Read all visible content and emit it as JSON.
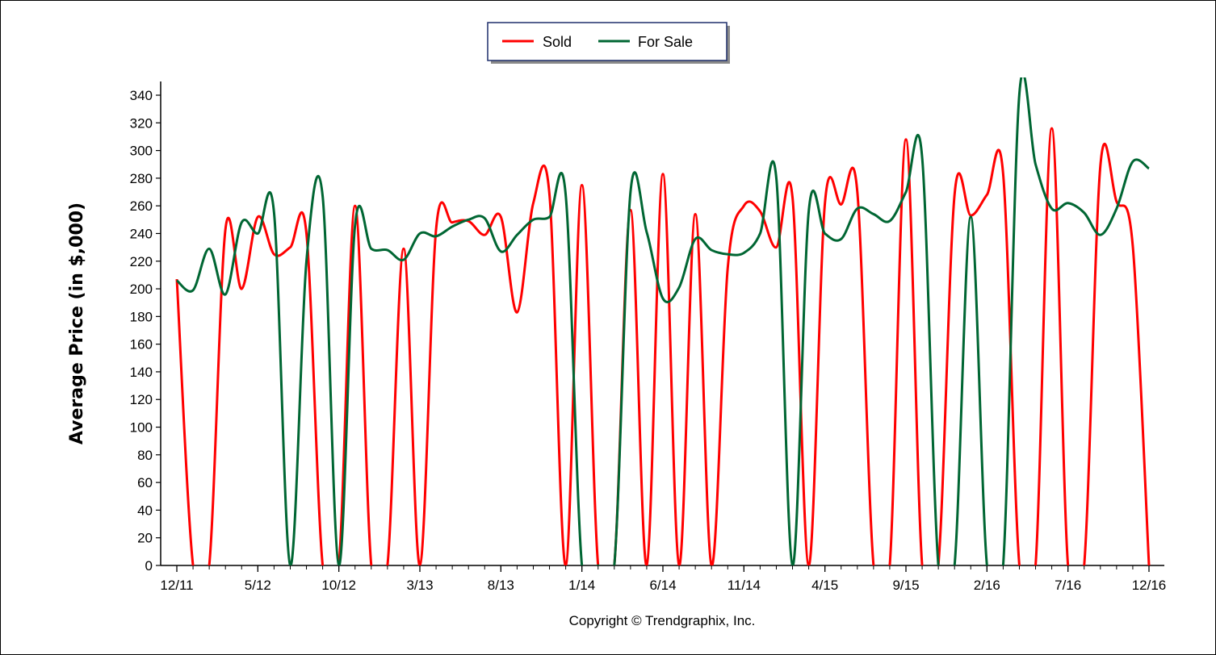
{
  "chart_data": {
    "type": "line",
    "ylabel": "Average Price (in $,000)",
    "xlabel": "",
    "title": "",
    "ylim": [
      0,
      340
    ],
    "yticks": [
      0,
      20,
      40,
      60,
      80,
      100,
      120,
      140,
      160,
      180,
      200,
      220,
      240,
      260,
      280,
      300,
      320,
      340
    ],
    "xtick_labels": [
      "12/11",
      "5/12",
      "10/12",
      "3/13",
      "8/13",
      "1/14",
      "6/14",
      "11/14",
      "4/15",
      "9/15",
      "2/16",
      "7/16",
      "12/16"
    ],
    "x": [
      "12/11",
      "1/12",
      "2/12",
      "3/12",
      "4/12",
      "5/12",
      "6/12",
      "7/12",
      "8/12",
      "9/12",
      "10/12",
      "11/12",
      "12/12",
      "1/13",
      "2/13",
      "3/13",
      "4/13",
      "5/13",
      "6/13",
      "7/13",
      "8/13",
      "9/13",
      "10/13",
      "11/13",
      "12/13",
      "1/14",
      "2/14",
      "3/14",
      "4/14",
      "5/14",
      "6/14",
      "7/14",
      "8/14",
      "9/14",
      "10/14",
      "11/14",
      "12/14",
      "1/15",
      "2/15",
      "3/15",
      "4/15",
      "5/15",
      "6/15",
      "7/15",
      "8/15",
      "9/15",
      "10/15",
      "11/15",
      "12/15",
      "1/16",
      "2/16",
      "3/16",
      "4/16",
      "5/16",
      "6/16",
      "7/16",
      "8/16",
      "9/16",
      "10/16",
      "11/16",
      "12/16"
    ],
    "legend_position": "top-center",
    "grid": false,
    "series": [
      {
        "name": "Sold",
        "color": "#ff0000",
        "values": [
          207,
          0,
          0,
          243,
          200,
          252,
          225,
          230,
          240,
          0,
          0,
          260,
          0,
          0,
          229,
          0,
          243,
          248,
          249,
          239,
          252,
          183,
          262,
          268,
          0,
          275,
          0,
          0,
          257,
          0,
          283,
          0,
          254,
          0,
          215,
          260,
          256,
          230,
          266,
          0,
          262,
          261,
          270,
          0,
          0,
          308,
          0,
          0,
          268,
          253,
          268,
          283,
          0,
          0,
          316,
          0,
          0,
          289,
          263,
          231,
          0
        ]
      },
      {
        "name": "For Sale",
        "color": "#006633",
        "values": [
          206,
          199,
          229,
          196,
          248,
          240,
          255,
          0,
          220,
          267,
          0,
          246,
          229,
          228,
          221,
          240,
          238,
          245,
          250,
          251,
          227,
          239,
          250,
          252,
          268,
          0,
          0,
          0,
          270,
          241,
          193,
          201,
          236,
          228,
          225,
          226,
          240,
          280,
          0,
          256,
          240,
          236,
          258,
          254,
          249,
          270,
          295,
          0,
          0,
          252,
          0,
          0,
          341,
          290,
          258,
          262,
          255,
          239,
          258,
          292,
          287
        ]
      }
    ]
  },
  "copyright": "Copyright © Trendgraphix, Inc."
}
